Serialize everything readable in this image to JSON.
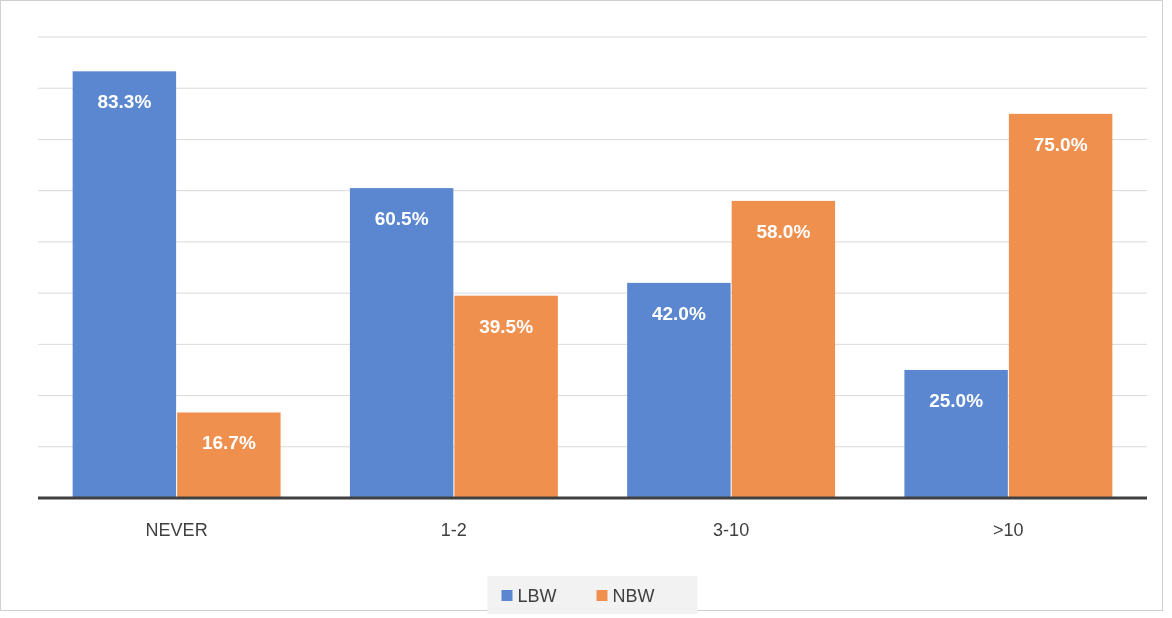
{
  "chart_data": {
    "type": "bar",
    "categories": [
      "NEVER",
      "1-2",
      "3-10",
      ">10"
    ],
    "series": [
      {
        "name": "LBW",
        "color": "#5b87d0",
        "values": [
          83.3,
          60.5,
          42.0,
          25.0
        ],
        "value_labels": [
          "83.3%",
          "60.5%",
          "42.0%",
          "25.0%"
        ]
      },
      {
        "name": "NBW",
        "color": "#f0904f",
        "values": [
          16.7,
          39.5,
          58.0,
          75.0
        ],
        "value_labels": [
          "16.7%",
          "39.5%",
          "58.0%",
          "75.0%"
        ]
      }
    ],
    "ylim": [
      0,
      90
    ],
    "yticks": [
      {
        "value": 0,
        "label": null
      },
      {
        "value": 10,
        "label": null
      },
      {
        "value": 20,
        "label": null
      },
      {
        "value": 30,
        "label": null
      },
      {
        "value": 40,
        "label": null
      },
      {
        "value": 50,
        "label": null
      },
      {
        "value": 60,
        "label": null
      },
      {
        "value": 70,
        "label": null
      },
      {
        "value": 80,
        "label": null
      },
      {
        "value": 90,
        "label": null
      }
    ],
    "tick_labels": "x",
    "grid": "y",
    "legend": "bottom"
  }
}
